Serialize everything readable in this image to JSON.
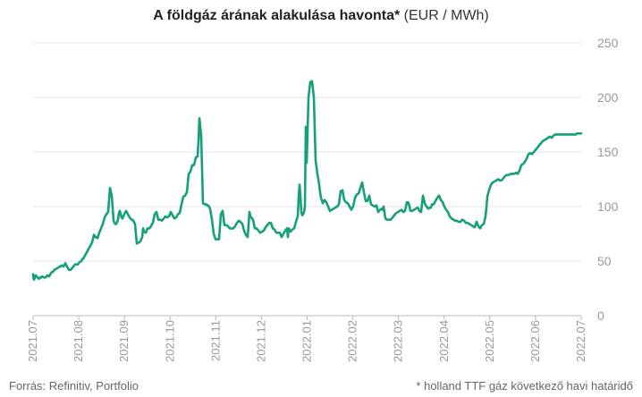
{
  "chart_data": {
    "type": "line",
    "title_bold": "A földgáz árának alakulása havonta*",
    "title_unit": "(EUR / MWh)",
    "x_tick_labels": [
      "2021.07",
      "2021.08",
      "2021.09",
      "2021.10",
      "2021.11",
      "2021.12",
      "2022.01",
      "2022.02",
      "2022.03",
      "2022.04",
      "2022.05",
      "2022.06",
      "2022.07"
    ],
    "y_ticks": [
      0,
      50,
      100,
      150,
      200,
      250
    ],
    "ylim": [
      0,
      250
    ],
    "grid": true,
    "line_color": "#16a07a",
    "series": [
      {
        "x": [
          0,
          0.5,
          1,
          2,
          3,
          4,
          5,
          6,
          7,
          8,
          9,
          10,
          12,
          14,
          16,
          18,
          20,
          21,
          22,
          23,
          24,
          26,
          28,
          30,
          32,
          34,
          36,
          38,
          40,
          42,
          44,
          46,
          47,
          48,
          50,
          52,
          54,
          55,
          56,
          58,
          60,
          62,
          64,
          66,
          68,
          70,
          72,
          74,
          76,
          78,
          80,
          82,
          84,
          86,
          88,
          90,
          91,
          92,
          93,
          94,
          95,
          96,
          97,
          98,
          99,
          100,
          101,
          102,
          104,
          106,
          108,
          110,
          111,
          112,
          114,
          116,
          118,
          120,
          122,
          123,
          124,
          126,
          128,
          130,
          132,
          133,
          134,
          136,
          138,
          140,
          142,
          144,
          146,
          148,
          150,
          152,
          153,
          154,
          156,
          158,
          160,
          162,
          164,
          166,
          168,
          170,
          172,
          174,
          176,
          178,
          180,
          182,
          184,
          185,
          186,
          188,
          190,
          192,
          193,
          194,
          195,
          196,
          198,
          200,
          202,
          204,
          206,
          208,
          210,
          212,
          214,
          216,
          218,
          220,
          222,
          224,
          226,
          228,
          230,
          232,
          234,
          236,
          238,
          240,
          242,
          243,
          244,
          246,
          248,
          250,
          252,
          254,
          256,
          258,
          260,
          262,
          264,
          266,
          268,
          270,
          272,
          274,
          276,
          278,
          280,
          282,
          284,
          285,
          286,
          288,
          290,
          292,
          294,
          296,
          297,
          298,
          299,
          300,
          301,
          302,
          303,
          304,
          305,
          306,
          308,
          310,
          312,
          314,
          316,
          318,
          320,
          321,
          322,
          324,
          326,
          328,
          330,
          332,
          334,
          336,
          338,
          340,
          342,
          344,
          346,
          348,
          350,
          352,
          354,
          356,
          357,
          358,
          360,
          362,
          364,
          366,
          368,
          370,
          372,
          374,
          376,
          378,
          380,
          382,
          384,
          386,
          388,
          390,
          391,
          392,
          394,
          396,
          398,
          400,
          402,
          404,
          406,
          408,
          410,
          412,
          413,
          414,
          416,
          418,
          419,
          420,
          421,
          422,
          423,
          424,
          426,
          428,
          430,
          431,
          432,
          434,
          436,
          438,
          440,
          442,
          444,
          445,
          446,
          448,
          450,
          452,
          454,
          456,
          458,
          460,
          462,
          464,
          466,
          468,
          470,
          472,
          474,
          476,
          478,
          479,
          480,
          482,
          484,
          486,
          488,
          490,
          492,
          494,
          496,
          498,
          500,
          502,
          504,
          506,
          507,
          508,
          510,
          512,
          514,
          516,
          518,
          520,
          522,
          524,
          526,
          528,
          530,
          532,
          534,
          536,
          538,
          540,
          542,
          544,
          546,
          548,
          550,
          552,
          554,
          556,
          558,
          560,
          562,
          564,
          566,
          568,
          570,
          572,
          574,
          576,
          577,
          578,
          580,
          581,
          582,
          584,
          586,
          588,
          590,
          592,
          594,
          596,
          598,
          600,
          602,
          604,
          606,
          607,
          608,
          610,
          612,
          613
        ],
        "values": [
          38,
          34,
          33,
          35,
          37,
          36,
          35,
          34,
          34,
          35,
          35,
          36,
          35,
          35,
          37,
          36,
          39,
          40,
          40,
          41,
          42,
          43,
          44,
          45,
          46,
          45,
          48,
          45,
          42,
          42,
          44,
          46,
          47,
          47,
          47,
          49,
          50,
          52,
          52,
          55,
          58,
          61,
          64,
          67,
          74,
          72,
          71,
          76,
          80,
          84,
          90,
          93,
          95,
          117,
          110,
          87,
          85,
          84,
          84,
          86,
          88,
          94,
          96,
          93,
          90,
          89,
          91,
          93,
          96,
          93,
          90,
          88,
          88,
          87,
          84,
          66,
          67,
          68,
          72,
          80,
          77,
          76,
          80,
          80,
          82,
          84,
          85,
          93,
          95,
          88,
          88,
          87,
          89,
          91,
          90,
          91,
          93,
          95,
          92,
          89,
          90,
          93,
          94,
          102,
          109,
          110,
          113,
          130,
          132,
          138,
          138,
          145,
          146,
          160,
          181,
          165,
          103,
          102,
          102,
          102,
          101,
          101,
          98,
          88,
          75,
          70,
          70,
          70,
          93,
          96,
          83,
          83,
          82,
          80,
          80,
          80,
          82,
          85,
          87,
          86,
          84,
          78,
          74,
          72,
          95,
          91,
          90,
          88,
          80,
          80,
          78,
          76,
          77,
          78,
          81,
          83,
          85,
          85,
          80,
          79,
          76,
          76,
          76,
          72,
          75,
          78,
          80,
          72,
          80,
          77,
          79,
          80,
          86,
          91,
          108,
          120,
          110,
          95,
          92,
          93,
          95,
          100,
          173,
          140,
          200,
          214,
          215,
          200,
          142,
          130,
          120,
          113,
          108,
          103,
          106,
          104,
          100,
          96,
          97,
          98,
          99,
          100,
          102,
          114,
          115,
          106,
          104,
          103,
          100,
          97,
          99,
          100,
          108,
          111,
          112,
          117,
          122,
          113,
          105,
          105,
          110,
          102,
          101,
          100,
          101,
          95,
          97,
          98,
          97,
          100,
          89,
          88,
          88,
          88,
          90,
          92,
          94,
          95,
          96,
          97,
          96,
          95,
          96,
          104,
          104,
          103,
          100,
          96,
          96,
          96,
          97,
          98,
          99,
          98,
          96,
          95,
          110,
          103,
          100,
          98,
          99,
          99,
          102,
          102,
          105,
          108,
          110,
          106,
          104,
          100,
          97,
          95,
          91,
          89,
          88,
          87,
          87,
          86,
          86,
          87,
          88,
          87,
          85,
          85,
          84,
          83,
          82,
          81,
          86,
          82,
          80,
          83,
          84,
          91,
          99,
          109,
          115,
          120,
          122,
          123,
          124,
          125,
          124,
          124,
          126,
          128,
          129,
          129,
          130,
          130,
          130,
          131,
          130,
          133,
          138,
          139,
          141,
          144,
          148,
          149,
          148,
          150,
          152,
          154,
          156,
          158,
          160,
          161,
          162,
          163,
          164,
          164,
          163,
          164,
          165,
          166,
          166,
          166,
          166,
          166,
          166,
          166,
          166,
          166,
          166,
          166,
          166,
          166,
          167,
          167,
          167,
          167
        ]
      }
    ],
    "source": "Forrás: Refinitiv, Portfolio",
    "note": "* holland TTF gáz következő havi határidő"
  }
}
